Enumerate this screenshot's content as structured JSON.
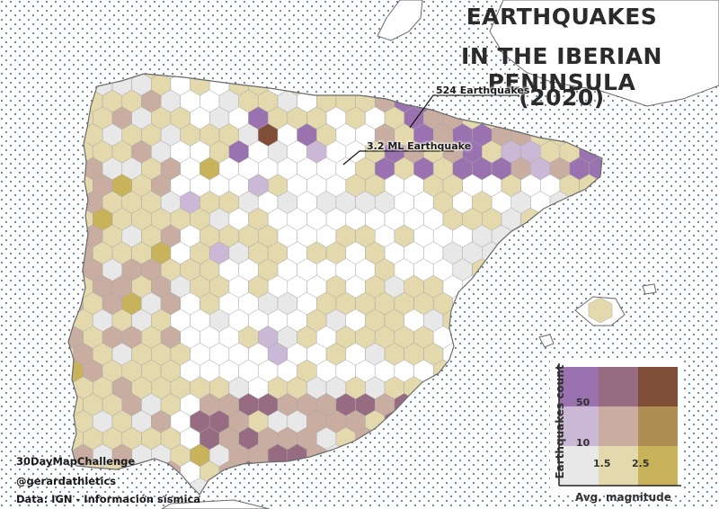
{
  "title": {
    "line1": "EARTHQUAKES",
    "line2": "IN THE IBERIAN PENINSULA",
    "line3": "(2020)"
  },
  "annotations": {
    "max_count": "524 Earthquakes",
    "max_magnitude": "3.2 ML Earthquake"
  },
  "credits": {
    "challenge": "30DayMapChallenge",
    "author": "@gerardathletics",
    "source": "Data: IGN - Información sísmica"
  },
  "legend": {
    "y_title": "Earthquakes count",
    "x_title": "Avg. magnitude",
    "y_breaks": [
      "10",
      "50"
    ],
    "x_breaks": [
      "1.5",
      "2.5"
    ],
    "palette": [
      [
        "#e8e8e8",
        "#e4d9ac",
        "#c8b35a"
      ],
      [
        "#cbb8d7",
        "#c8ada0",
        "#af8e53"
      ],
      [
        "#9972af",
        "#976b82",
        "#804d36"
      ]
    ]
  },
  "colors": {
    "sea_dots": "#4a6b8a",
    "land": "#ffffff",
    "hex_stroke": "#a8a8a8",
    "coast": "#6a6a6a"
  }
}
